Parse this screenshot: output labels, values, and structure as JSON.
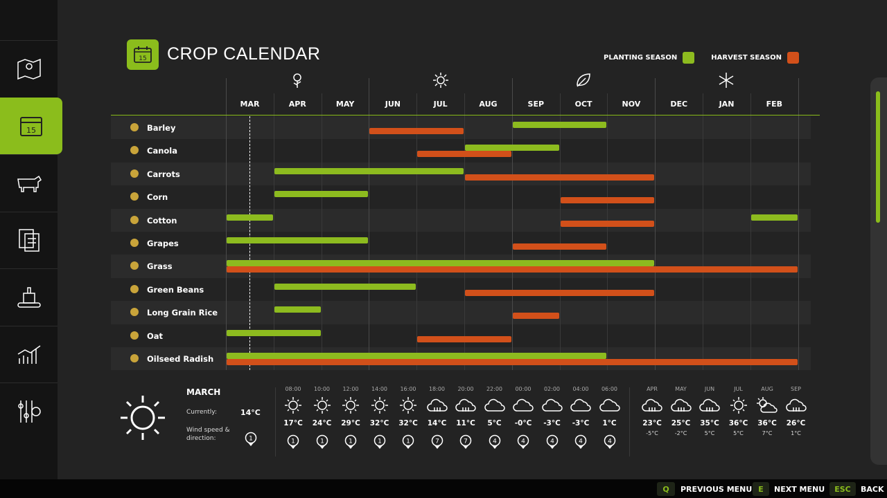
{
  "title": "CROP CALENDAR",
  "legend": {
    "planting": "PLANTING SEASON",
    "harvest": "HARVEST SEASON"
  },
  "colors": {
    "accent": "#8bbd1c",
    "planting": "#8dbb1f",
    "harvest": "#d2501a",
    "background": "#232323",
    "sidebar": "#141414"
  },
  "sidebar": {
    "items": [
      {
        "name": "map",
        "icon": "map-icon"
      },
      {
        "name": "calendar",
        "icon": "calendar-icon",
        "active": true
      },
      {
        "name": "animals",
        "icon": "cow-icon"
      },
      {
        "name": "contracts",
        "icon": "documents-icon"
      },
      {
        "name": "production",
        "icon": "factory-icon"
      },
      {
        "name": "statistics",
        "icon": "chart-icon"
      },
      {
        "name": "settings",
        "icon": "settings-icon"
      }
    ]
  },
  "season_icons": [
    {
      "icon": "flower-icon",
      "month": "APR"
    },
    {
      "icon": "sun-icon",
      "month": "JUL"
    },
    {
      "icon": "leaf-icon",
      "month": "OCT"
    },
    {
      "icon": "snowflake-icon",
      "month": "JAN"
    }
  ],
  "months": [
    "MAR",
    "APR",
    "MAY",
    "JUN",
    "JUL",
    "AUG",
    "SEP",
    "OCT",
    "NOV",
    "DEC",
    "JAN",
    "FEB"
  ],
  "current_month_position": 0.5,
  "crops": [
    {
      "name": "Barley",
      "planting": [
        [
          "SEP",
          "OCT"
        ]
      ],
      "harvest": [
        [
          "JUN",
          "JUL"
        ]
      ]
    },
    {
      "name": "Canola",
      "planting": [
        [
          "AUG",
          "SEP"
        ]
      ],
      "harvest": [
        [
          "JUL",
          "AUG"
        ]
      ]
    },
    {
      "name": "Carrots",
      "planting": [
        [
          "APR",
          "JUL"
        ]
      ],
      "harvest": [
        [
          "AUG",
          "NOV"
        ]
      ]
    },
    {
      "name": "Corn",
      "planting": [
        [
          "APR",
          "MAY"
        ]
      ],
      "harvest": [
        [
          "OCT",
          "NOV"
        ]
      ]
    },
    {
      "name": "Cotton",
      "planting": [
        [
          "MAR",
          "MAR"
        ],
        [
          "FEB",
          "FEB"
        ]
      ],
      "harvest": [
        [
          "OCT",
          "NOV"
        ]
      ]
    },
    {
      "name": "Grapes",
      "planting": [
        [
          "MAR",
          "MAY"
        ]
      ],
      "harvest": [
        [
          "SEP",
          "OCT"
        ]
      ]
    },
    {
      "name": "Grass",
      "planting": [
        [
          "MAR",
          "NOV"
        ]
      ],
      "harvest": [
        [
          "MAR",
          "FEB"
        ]
      ]
    },
    {
      "name": "Green Beans",
      "planting": [
        [
          "APR",
          "JUN"
        ]
      ],
      "harvest": [
        [
          "AUG",
          "NOV"
        ]
      ]
    },
    {
      "name": "Long Grain Rice",
      "planting": [
        [
          "APR",
          "APR"
        ]
      ],
      "harvest": [
        [
          "SEP",
          "SEP"
        ]
      ]
    },
    {
      "name": "Oat",
      "planting": [
        [
          "MAR",
          "APR"
        ]
      ],
      "harvest": [
        [
          "JUL",
          "AUG"
        ]
      ]
    },
    {
      "name": "Oilseed Radish",
      "planting": [
        [
          "MAR",
          "OCT"
        ]
      ],
      "harvest": [
        [
          "MAR",
          "FEB"
        ]
      ]
    }
  ],
  "weather": {
    "month": "MARCH",
    "currently_label": "Currently:",
    "currently": "14°C",
    "wind_label": "Wind speed & direction:",
    "wind": "1",
    "hourly": [
      {
        "time": "08:00",
        "icon": "sun",
        "temp": "17°C",
        "wind": "1"
      },
      {
        "time": "10:00",
        "icon": "sun",
        "temp": "24°C",
        "wind": "1"
      },
      {
        "time": "12:00",
        "icon": "sun",
        "temp": "29°C",
        "wind": "1"
      },
      {
        "time": "14:00",
        "icon": "sun",
        "temp": "32°C",
        "wind": "1"
      },
      {
        "time": "16:00",
        "icon": "sun",
        "temp": "32°C",
        "wind": "1"
      },
      {
        "time": "18:00",
        "icon": "rain",
        "temp": "14°C",
        "wind": "7"
      },
      {
        "time": "20:00",
        "icon": "rain",
        "temp": "11°C",
        "wind": "7"
      },
      {
        "time": "22:00",
        "icon": "cloud",
        "temp": "5°C",
        "wind": "4"
      },
      {
        "time": "00:00",
        "icon": "cloud",
        "temp": "-0°C",
        "wind": "4"
      },
      {
        "time": "02:00",
        "icon": "cloud",
        "temp": "-3°C",
        "wind": "4"
      },
      {
        "time": "04:00",
        "icon": "cloud",
        "temp": "-3°C",
        "wind": "4"
      },
      {
        "time": "06:00",
        "icon": "cloud",
        "temp": "1°C",
        "wind": "4"
      }
    ],
    "forecast": [
      {
        "month": "APR",
        "icon": "rain",
        "high": "23°C",
        "low": "-5°C"
      },
      {
        "month": "MAY",
        "icon": "rain",
        "high": "25°C",
        "low": "-2°C"
      },
      {
        "month": "JUN",
        "icon": "rain",
        "high": "35°C",
        "low": "5°C"
      },
      {
        "month": "JUL",
        "icon": "sun",
        "high": "36°C",
        "low": "5°C"
      },
      {
        "month": "AUG",
        "icon": "partly-cloudy",
        "high": "36°C",
        "low": "7°C"
      },
      {
        "month": "SEP",
        "icon": "rain",
        "high": "26°C",
        "low": "1°C"
      }
    ]
  },
  "bottom": [
    {
      "key": "Q",
      "label": "PREVIOUS MENU"
    },
    {
      "key": "E",
      "label": "NEXT MENU"
    },
    {
      "key": "ESC",
      "label": "BACK"
    }
  ]
}
